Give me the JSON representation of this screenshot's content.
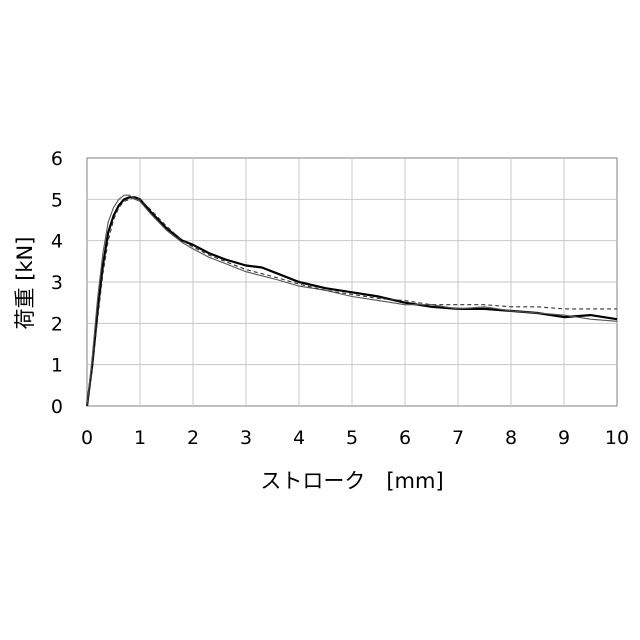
{
  "chart_data": {
    "type": "line",
    "title": "",
    "xlabel": "ストローク　[mm]",
    "ylabel": "荷重 [kN]",
    "xlim": [
      0,
      10
    ],
    "ylim": [
      0,
      6
    ],
    "x_ticks": [
      "0",
      "1",
      "2",
      "3",
      "4",
      "5",
      "6",
      "7",
      "8",
      "9",
      "10"
    ],
    "y_ticks": [
      "0",
      "1",
      "2",
      "3",
      "4",
      "5",
      "6"
    ],
    "grid": true,
    "legend": "none",
    "series": [
      {
        "color": "#000000",
        "style": "solid-thick",
        "x": [
          0,
          0.1,
          0.2,
          0.3,
          0.4,
          0.5,
          0.6,
          0.7,
          0.8,
          0.9,
          1.0,
          1.2,
          1.5,
          1.8,
          2.0,
          2.3,
          2.6,
          3.0,
          3.3,
          3.6,
          4.0,
          4.5,
          5.0,
          5.5,
          6.0,
          6.5,
          7.0,
          7.5,
          8.0,
          8.5,
          9.0,
          9.5,
          10.0
        ],
        "y": [
          0,
          1.0,
          2.3,
          3.4,
          4.2,
          4.6,
          4.85,
          5.0,
          5.05,
          5.05,
          5.0,
          4.7,
          4.3,
          4.0,
          3.9,
          3.7,
          3.55,
          3.4,
          3.35,
          3.2,
          3.0,
          2.85,
          2.75,
          2.65,
          2.5,
          2.4,
          2.35,
          2.35,
          2.3,
          2.25,
          2.15,
          2.2,
          2.1
        ]
      },
      {
        "color": "#555555",
        "style": "solid-thin",
        "x": [
          0,
          0.1,
          0.2,
          0.3,
          0.4,
          0.5,
          0.6,
          0.7,
          0.8,
          0.9,
          1.0,
          1.2,
          1.5,
          1.8,
          2.0,
          2.3,
          2.6,
          3.0,
          3.3,
          3.6,
          4.0,
          4.5,
          5.0,
          5.5,
          6.0,
          6.5,
          7.0,
          7.5,
          8.0,
          8.5,
          9.0,
          9.5,
          10.0
        ],
        "y": [
          0,
          1.2,
          2.6,
          3.7,
          4.45,
          4.8,
          5.0,
          5.1,
          5.1,
          5.0,
          4.95,
          4.65,
          4.25,
          3.95,
          3.8,
          3.6,
          3.45,
          3.25,
          3.15,
          3.05,
          2.9,
          2.8,
          2.65,
          2.55,
          2.45,
          2.45,
          2.35,
          2.4,
          2.3,
          2.25,
          2.2,
          2.1,
          2.05
        ]
      },
      {
        "color": "#333333",
        "style": "dashed",
        "x": [
          0,
          0.1,
          0.2,
          0.3,
          0.4,
          0.5,
          0.6,
          0.7,
          0.8,
          0.9,
          1.0,
          1.2,
          1.5,
          1.8,
          2.0,
          2.3,
          2.6,
          3.0,
          3.3,
          3.6,
          4.0,
          4.5,
          5.0,
          5.5,
          6.0,
          6.5,
          7.0,
          7.5,
          8.0,
          8.5,
          9.0,
          9.5,
          10.0
        ],
        "y": [
          0,
          0.9,
          2.1,
          3.2,
          4.0,
          4.5,
          4.8,
          4.95,
          5.0,
          5.05,
          5.0,
          4.75,
          4.35,
          4.0,
          3.85,
          3.65,
          3.5,
          3.3,
          3.2,
          3.1,
          2.95,
          2.8,
          2.7,
          2.6,
          2.55,
          2.45,
          2.45,
          2.45,
          2.4,
          2.4,
          2.35,
          2.35,
          2.35
        ]
      }
    ]
  }
}
